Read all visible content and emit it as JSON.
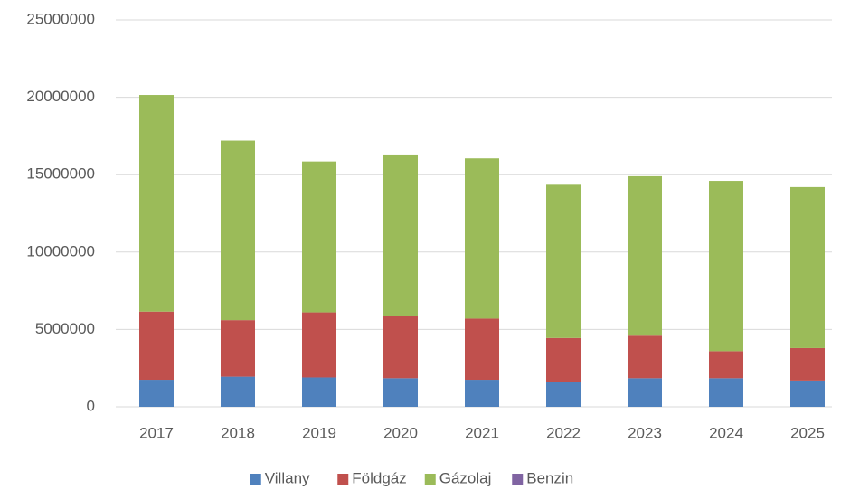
{
  "chart_data": {
    "type": "stacked_bar",
    "categories": [
      "2017",
      "2018",
      "2019",
      "2020",
      "2021",
      "2022",
      "2023",
      "2024",
      "2025"
    ],
    "series": [
      {
        "name": "Villany",
        "color": "#4f81bd",
        "values": [
          1750000,
          1950000,
          1900000,
          1850000,
          1750000,
          1600000,
          1850000,
          1850000,
          1700000
        ]
      },
      {
        "name": "Földgáz",
        "color": "#c0504d",
        "values": [
          4400000,
          3650000,
          4200000,
          4000000,
          3950000,
          2850000,
          2750000,
          1750000,
          2100000
        ]
      },
      {
        "name": "Gázolaj",
        "color": "#9bbb59",
        "values": [
          14000000,
          11600000,
          9750000,
          10450000,
          10350000,
          9900000,
          10300000,
          11000000,
          10400000
        ]
      },
      {
        "name": "Benzin",
        "color": "#8064a2",
        "values": [
          0,
          0,
          0,
          0,
          0,
          0,
          0,
          0,
          0
        ]
      }
    ],
    "ylim": [
      0,
      25000000
    ],
    "yticks": [
      0,
      5000000,
      10000000,
      15000000,
      20000000,
      25000000
    ],
    "grid": true,
    "legend": "bottom"
  }
}
